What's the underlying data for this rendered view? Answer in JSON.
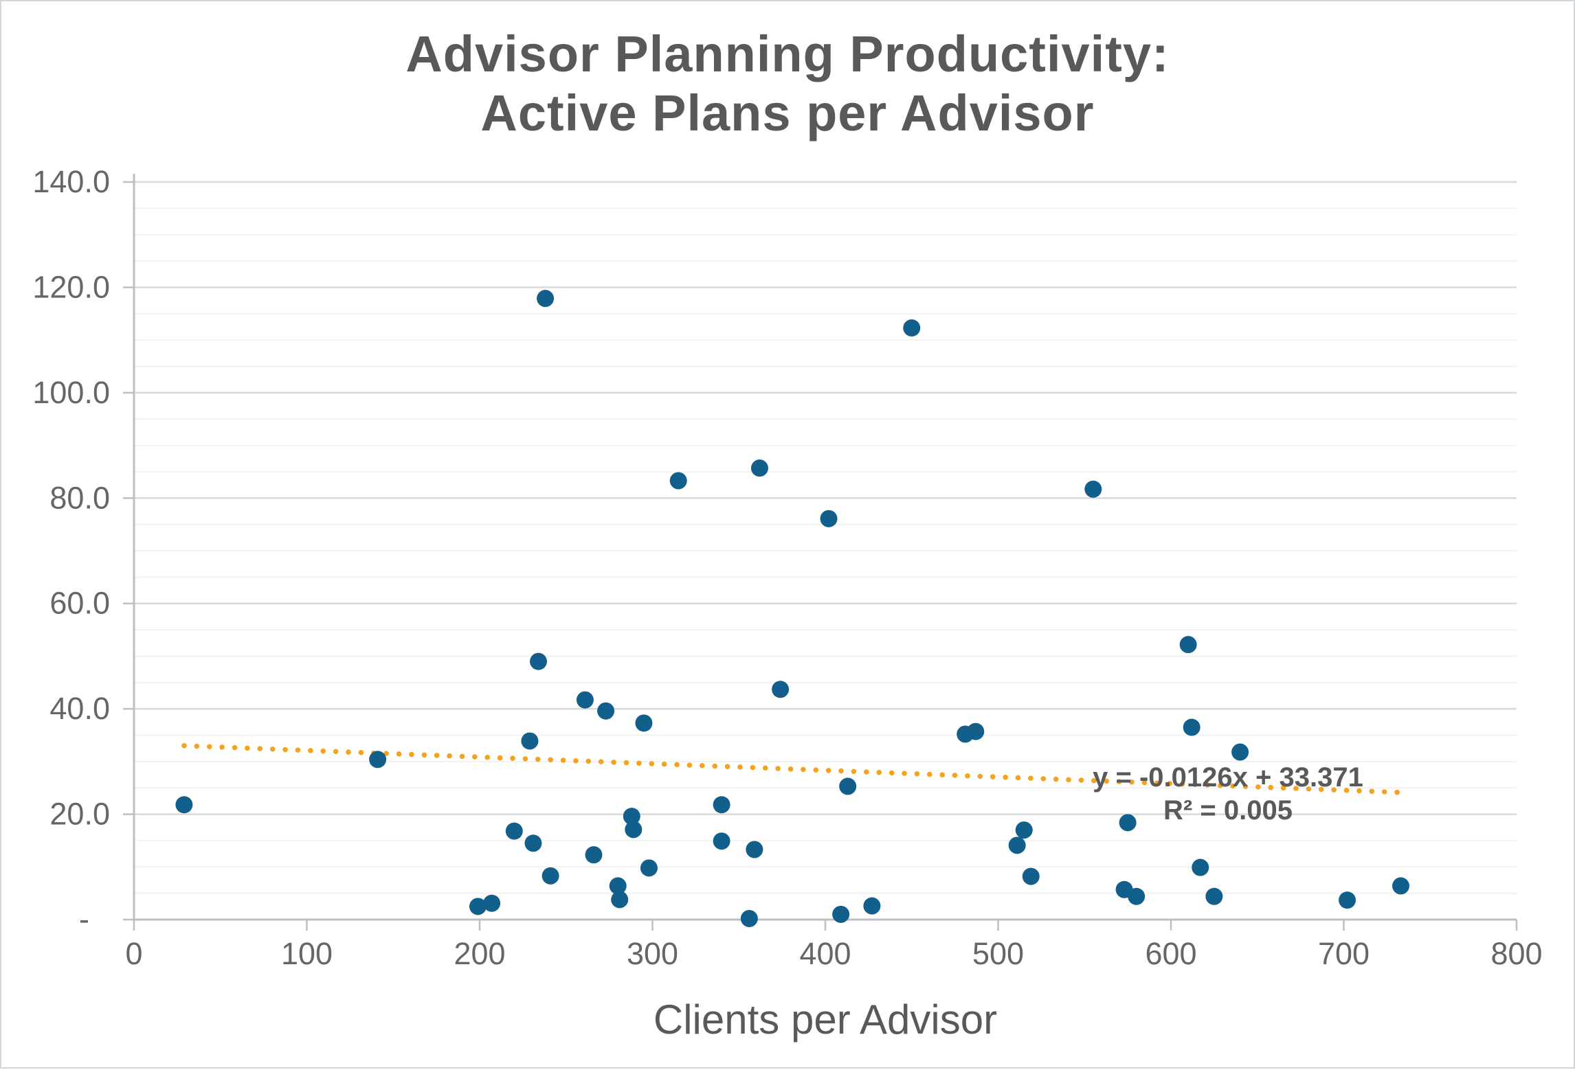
{
  "colors": {
    "marker": "#135f8c",
    "trendline": "#f5a21c",
    "title_text": "#595959",
    "tick_text": "#666666",
    "gridline_major": "#d9d9d9",
    "gridline_minor": "#f2f2f2",
    "axis_line": "#bfbfbf",
    "background": "#ffffff"
  },
  "chart_data": {
    "type": "scatter",
    "title_line1": "Advisor Planning Productivity:",
    "title_line2": "Active Plans per Advisor",
    "xlabel": "Clients per Advisor",
    "ylabel": "",
    "xlim": [
      0,
      800
    ],
    "ylim": [
      0,
      140
    ],
    "x_tick_step": 100,
    "y_tick_step": 20,
    "y_minor_step": 5,
    "grid": "horizontal-only",
    "legend_position": "none",
    "x_tick_labels": [
      "0",
      "100",
      "200",
      "300",
      "400",
      "500",
      "600",
      "700",
      "800"
    ],
    "y_tick_labels": [
      "-",
      "20.0",
      "40.0",
      "60.0",
      "80.0",
      "100.0",
      "120.0",
      "140.0"
    ],
    "points": [
      [
        29,
        21.8
      ],
      [
        141,
        30.4
      ],
      [
        199,
        2.5
      ],
      [
        207,
        3.1
      ],
      [
        220,
        16.8
      ],
      [
        229,
        33.9
      ],
      [
        231,
        14.5
      ],
      [
        234,
        49.0
      ],
      [
        238,
        117.9
      ],
      [
        241,
        8.3
      ],
      [
        261,
        41.7
      ],
      [
        266,
        12.3
      ],
      [
        273,
        39.6
      ],
      [
        280,
        6.4
      ],
      [
        281,
        3.8
      ],
      [
        288,
        19.6
      ],
      [
        289,
        17.1
      ],
      [
        295,
        37.3
      ],
      [
        298,
        9.8
      ],
      [
        315,
        83.3
      ],
      [
        340,
        21.8
      ],
      [
        340,
        14.9
      ],
      [
        356,
        0.2
      ],
      [
        359,
        13.3
      ],
      [
        362,
        85.7
      ],
      [
        374,
        43.7
      ],
      [
        402,
        76.1
      ],
      [
        409,
        1.0
      ],
      [
        413,
        25.3
      ],
      [
        427,
        2.6
      ],
      [
        450,
        112.3
      ],
      [
        481,
        35.2
      ],
      [
        487,
        35.7
      ],
      [
        511,
        14.1
      ],
      [
        515,
        17.0
      ],
      [
        519,
        8.2
      ],
      [
        555,
        81.7
      ],
      [
        573,
        5.7
      ],
      [
        575,
        18.4
      ],
      [
        580,
        4.4
      ],
      [
        610,
        52.2
      ],
      [
        612,
        36.5
      ],
      [
        617,
        9.9
      ],
      [
        625,
        4.4
      ],
      [
        640,
        31.8
      ],
      [
        702,
        3.7
      ],
      [
        733,
        6.4
      ]
    ],
    "trendline": {
      "slope": -0.0126,
      "intercept": 33.371,
      "x_start": 29,
      "x_end": 733,
      "label_line1": "y = -0.0126x + 33.371",
      "label_line2": "R² = 0.005"
    }
  }
}
